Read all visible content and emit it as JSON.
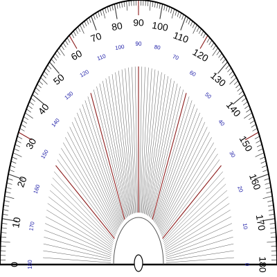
{
  "protractor": {
    "outer_labels": [
      "0",
      "10",
      "20",
      "30",
      "40",
      "50",
      "60",
      "70",
      "80",
      "90",
      "100",
      "110",
      "120",
      "130",
      "140",
      "150",
      "160",
      "170",
      "180"
    ],
    "inner_labels": [
      "180",
      "170",
      "160",
      "150",
      "140",
      "130",
      "120",
      "110",
      "100",
      "90",
      "80",
      "70",
      "60",
      "50",
      "40",
      "30",
      "20",
      "10",
      "0"
    ],
    "label_step_degrees": 10,
    "ray_step_degrees": 2,
    "range_degrees": [
      0,
      180
    ],
    "colors": {
      "outline": "#000000",
      "tick": "#333333",
      "ray": "#555555",
      "accent_ray": "#8b1a1a",
      "inner_label": "#1a1aa6",
      "outer_label": "#000000"
    }
  }
}
